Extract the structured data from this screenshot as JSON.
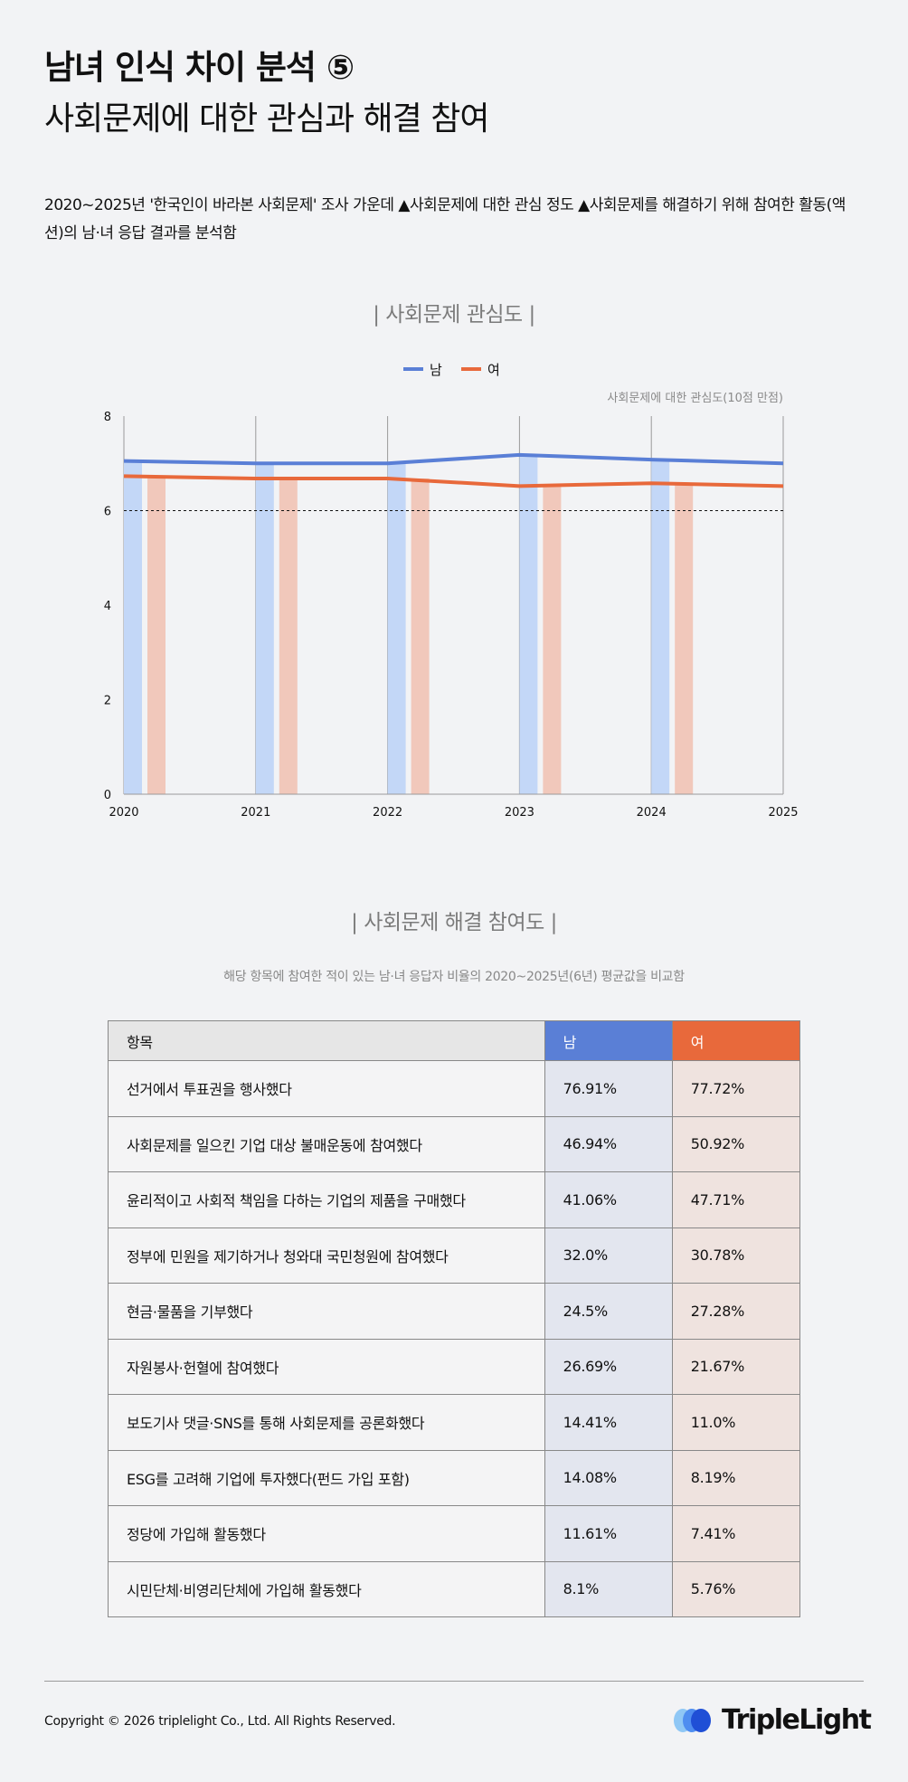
{
  "header": {
    "title_line1": "남녀 인식 차이 분석 ⑤",
    "title_line2": "사회문제에 대한 관심과 해결 참여",
    "description": "2020~2025년 '한국인이 바라본 사회문제' 조사 가운데 ▲사회문제에 대한 관심 정도 ▲사회문제를 해결하기 위해 참여한 활동(액션)의 남·녀 응답 결과를 분석함"
  },
  "chart_data": {
    "type": "bar",
    "title": "| 사회문제 관심도 |",
    "subtitle": "사회문제에 대한 관심도(10점 만점)",
    "categories": [
      "2020",
      "2021",
      "2022",
      "2023",
      "2024",
      "2025"
    ],
    "series": [
      {
        "name": "남",
        "color": "#5a7fd6",
        "bar_color": "#c3d7f7",
        "values": [
          7.05,
          7.0,
          7.0,
          7.18,
          7.08,
          7.0
        ]
      },
      {
        "name": "여",
        "color": "#e8693b",
        "bar_color": "#f1c8bb",
        "values": [
          6.73,
          6.68,
          6.68,
          6.52,
          6.58,
          6.52
        ]
      }
    ],
    "y_ticks": [
      "0",
      "2",
      "4",
      "6",
      "8"
    ],
    "ylim": [
      0,
      8
    ],
    "reference_line": 6,
    "legend_position": "top-center"
  },
  "participation": {
    "title": "| 사회문제 해결 참여도 |",
    "subtitle": "해당 항목에 참여한 적이 있는 남·녀 응답자 비율의 2020~2025년(6년) 평균값을 비교함",
    "headers": {
      "item": "항목",
      "male": "남",
      "female": "여"
    },
    "rows": [
      {
        "item": "선거에서 투표권을 행사했다",
        "male": "76.91%",
        "female": "77.72%"
      },
      {
        "item": "사회문제를 일으킨 기업 대상 불매운동에 참여했다",
        "male": "46.94%",
        "female": "50.92%"
      },
      {
        "item": "윤리적이고 사회적 책임을 다하는 기업의 제품을 구매했다",
        "male": "41.06%",
        "female": "47.71%"
      },
      {
        "item": "정부에 민원을 제기하거나 청와대 국민청원에 참여했다",
        "male": "32.0%",
        "female": "30.78%"
      },
      {
        "item": "현금·물품을 기부했다",
        "male": "24.5%",
        "female": "27.28%"
      },
      {
        "item": "자원봉사·헌혈에 참여했다",
        "male": "26.69%",
        "female": "21.67%"
      },
      {
        "item": "보도기사 댓글·SNS를 통해 사회문제를 공론화했다",
        "male": "14.41%",
        "female": "11.0%"
      },
      {
        "item": "ESG를 고려해 기업에 투자했다(펀드 가입 포함)",
        "male": "14.08%",
        "female": "8.19%"
      },
      {
        "item": "정당에 가입해 활동했다",
        "male": "11.61%",
        "female": "7.41%"
      },
      {
        "item": "시민단체·비영리단체에 가입해 활동했다",
        "male": "8.1%",
        "female": "5.76%"
      }
    ]
  },
  "footer": {
    "copyright": "Copyright © 2026 triplelight Co., Ltd. All Rights Reserved.",
    "logo_text": "TripleLight"
  }
}
